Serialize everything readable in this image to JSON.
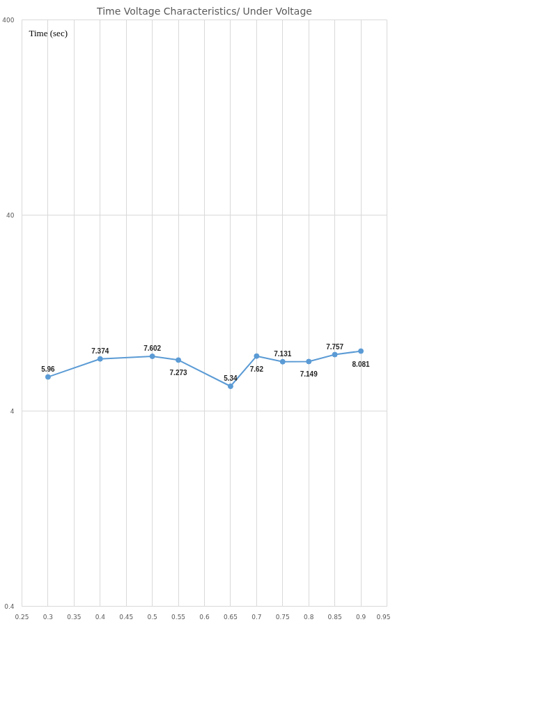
{
  "chart_data": {
    "type": "line",
    "title": "Time Voltage Characteristics/ Under Voltage",
    "ylabel": "Time (sec)",
    "x": [
      0.3,
      0.4,
      0.5,
      0.55,
      0.65,
      0.7,
      0.75,
      0.8,
      0.85,
      0.9
    ],
    "series": [
      {
        "color": "#5b9bd5",
        "values": [
          5.96,
          7.374,
          7.602,
          7.273,
          5.34,
          7.62,
          7.131,
          7.149,
          7.757,
          8.081
        ]
      }
    ],
    "xlim": [
      0.25,
      0.95
    ],
    "xticks": [
      0.25,
      0.3,
      0.35,
      0.4,
      0.45,
      0.5,
      0.55,
      0.6,
      0.65,
      0.7,
      0.75,
      0.8,
      0.85,
      0.9,
      0.95
    ],
    "ylim": [
      0.4,
      400
    ],
    "yticks": [
      0.4,
      4,
      40,
      400
    ],
    "log": "y",
    "grid": true,
    "marker": "circle",
    "data_labels": true
  }
}
